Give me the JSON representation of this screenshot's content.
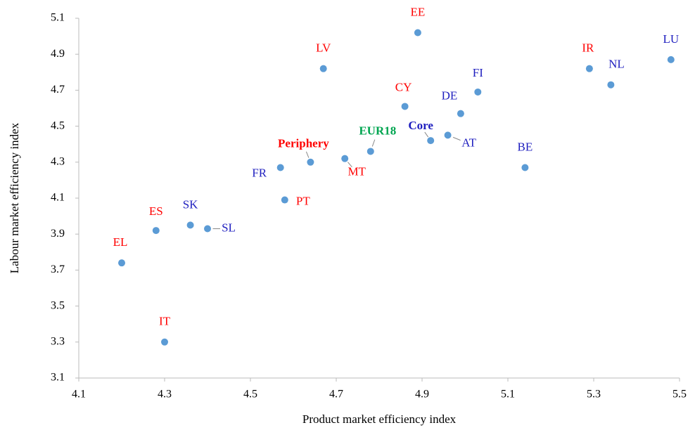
{
  "chart_data": {
    "type": "scatter",
    "x_label": "Product market efficiency  index",
    "y_label": "Labour market efficiency  index",
    "labels": [
      "EE",
      "LV",
      "IR",
      "NL",
      "LU",
      "FI",
      "CY",
      "DE",
      "AT",
      "Core",
      "EUR18",
      "MT",
      "Periphery",
      "FR",
      "BE",
      "PT",
      "ES",
      "SK",
      "SL",
      "EL",
      "IT"
    ],
    "x": [
      4.89,
      4.67,
      5.29,
      5.34,
      5.48,
      5.03,
      4.86,
      4.99,
      4.96,
      4.92,
      4.78,
      4.72,
      4.64,
      4.57,
      5.14,
      4.58,
      4.28,
      4.36,
      4.4,
      4.2,
      4.3
    ],
    "y": [
      5.02,
      4.82,
      4.82,
      4.73,
      4.87,
      4.69,
      4.61,
      4.57,
      4.45,
      4.42,
      4.36,
      4.32,
      4.3,
      4.27,
      4.27,
      4.09,
      3.92,
      3.95,
      3.93,
      3.74,
      3.3
    ],
    "color": "#5b9bd5",
    "label_colors": [
      "#ff0000",
      "#ff0000",
      "#ff0000",
      "#1f1fbf",
      "#1f1fbf",
      "#1f1fbf",
      "#ff0000",
      "#1f1fbf",
      "#1f1fbf",
      "#1f1fbf",
      "#00a550",
      "#ff0000",
      "#ff0000",
      "#1f1fbf",
      "#1f1fbf",
      "#ff0000",
      "#ff0000",
      "#1f1fbf",
      "#1f1fbf",
      "#ff0000",
      "#ff0000"
    ],
    "label_bold": [
      false,
      false,
      false,
      false,
      false,
      false,
      false,
      false,
      false,
      true,
      true,
      false,
      true,
      false,
      false,
      false,
      false,
      false,
      false,
      false,
      false
    ],
    "xlim": [
      4.1,
      5.5
    ],
    "xticks": [
      4.1,
      4.3,
      4.5,
      4.7,
      4.9,
      5.1,
      5.3,
      5.5
    ],
    "ylim": [
      3.1,
      5.1
    ],
    "yticks": [
      3.1,
      3.3,
      3.5,
      3.7,
      3.9,
      4.1,
      4.3,
      4.5,
      4.7,
      4.9,
      5.1
    ]
  }
}
